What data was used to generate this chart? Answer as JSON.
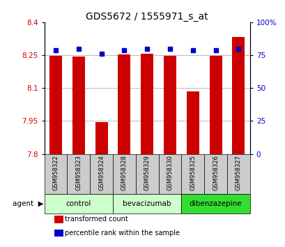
{
  "title": "GDS5672 / 1555971_s_at",
  "samples": [
    "GSM958322",
    "GSM958323",
    "GSM958324",
    "GSM958328",
    "GSM958329",
    "GSM958330",
    "GSM958325",
    "GSM958326",
    "GSM958327"
  ],
  "transformed_counts": [
    8.247,
    8.244,
    7.946,
    8.254,
    8.258,
    8.246,
    8.084,
    8.246,
    8.334
  ],
  "percentile_ranks": [
    79,
    80,
    76,
    79,
    80,
    80,
    79,
    79,
    80
  ],
  "y_min": 7.8,
  "y_max": 8.4,
  "y_ticks": [
    7.8,
    7.95,
    8.1,
    8.25,
    8.4
  ],
  "y_tick_labels": [
    "7.8",
    "7.95",
    "8.1",
    "8.25",
    "8.4"
  ],
  "right_y_ticks": [
    0,
    25,
    50,
    75,
    100
  ],
  "right_y_tick_labels": [
    "0",
    "25",
    "50",
    "75",
    "100%"
  ],
  "bar_color": "#cc0000",
  "dot_color": "#0000cc",
  "group_defs": [
    {
      "label": "control",
      "start": 0,
      "end": 2,
      "color": "#ccffcc"
    },
    {
      "label": "bevacizumab",
      "start": 3,
      "end": 5,
      "color": "#ccffcc"
    },
    {
      "label": "dibenzazepine",
      "start": 6,
      "end": 8,
      "color": "#33dd33"
    }
  ],
  "legend_items": [
    {
      "label": "transformed count",
      "color": "#cc0000"
    },
    {
      "label": "percentile rank within the sample",
      "color": "#0000cc"
    }
  ],
  "bar_width": 0.55,
  "sample_row_bg": "#cccccc",
  "title_fontsize": 10,
  "tick_fontsize": 7.5,
  "sample_fontsize": 6,
  "group_fontsize": 7.5,
  "legend_fontsize": 7
}
